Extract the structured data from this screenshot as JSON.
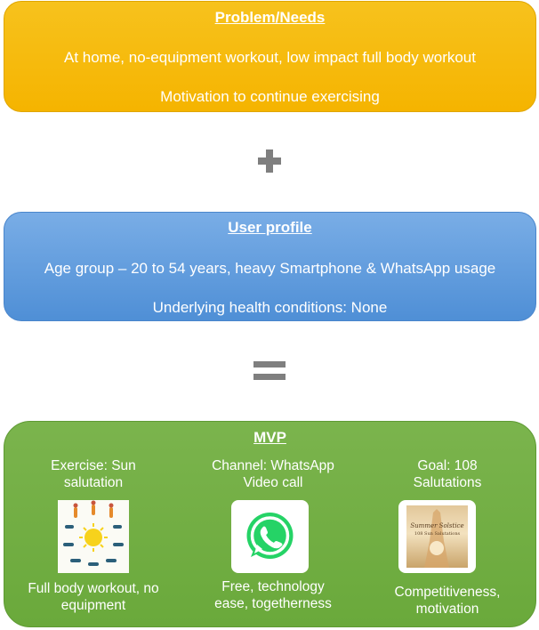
{
  "problem": {
    "heading": "Problem/Needs",
    "line1": "At home, no-equipment workout, low impact full body workout",
    "line2": "Motivation to continue exercising"
  },
  "operator_plus": "plus-icon",
  "profile": {
    "heading": "User profile",
    "line1": "Age group – 20 to 54 years, heavy Smartphone & WhatsApp usage",
    "line2": "Underlying health conditions: None"
  },
  "operator_equals": "equals-icon",
  "mvp": {
    "heading": "MVP",
    "columns": [
      {
        "title_line1": "Exercise: Sun",
        "title_line2": "salutation",
        "image": "sun-salutation-poses-image",
        "desc_line1": "Full body workout, no",
        "desc_line2": "equipment"
      },
      {
        "title_line1": "Channel: WhatsApp",
        "title_line2": "Video call",
        "image": "whatsapp-logo",
        "desc_line1": "Free, technology",
        "desc_line2": "ease, togetherness"
      },
      {
        "title_line1": "Goal: 108",
        "title_line2": "Salutations",
        "image": "summer-solstice-poster",
        "poster_text1": "Summer Solstice",
        "poster_text2": "108 Sun Salutations",
        "desc_line1": "Competitiveness,",
        "desc_line2": "motivation"
      }
    ]
  },
  "colors": {
    "problem": "#f5b400",
    "profile": "#4f8fd6",
    "mvp": "#6aa93b",
    "operator": "#7f7f7f",
    "whatsapp": "#25d366"
  }
}
